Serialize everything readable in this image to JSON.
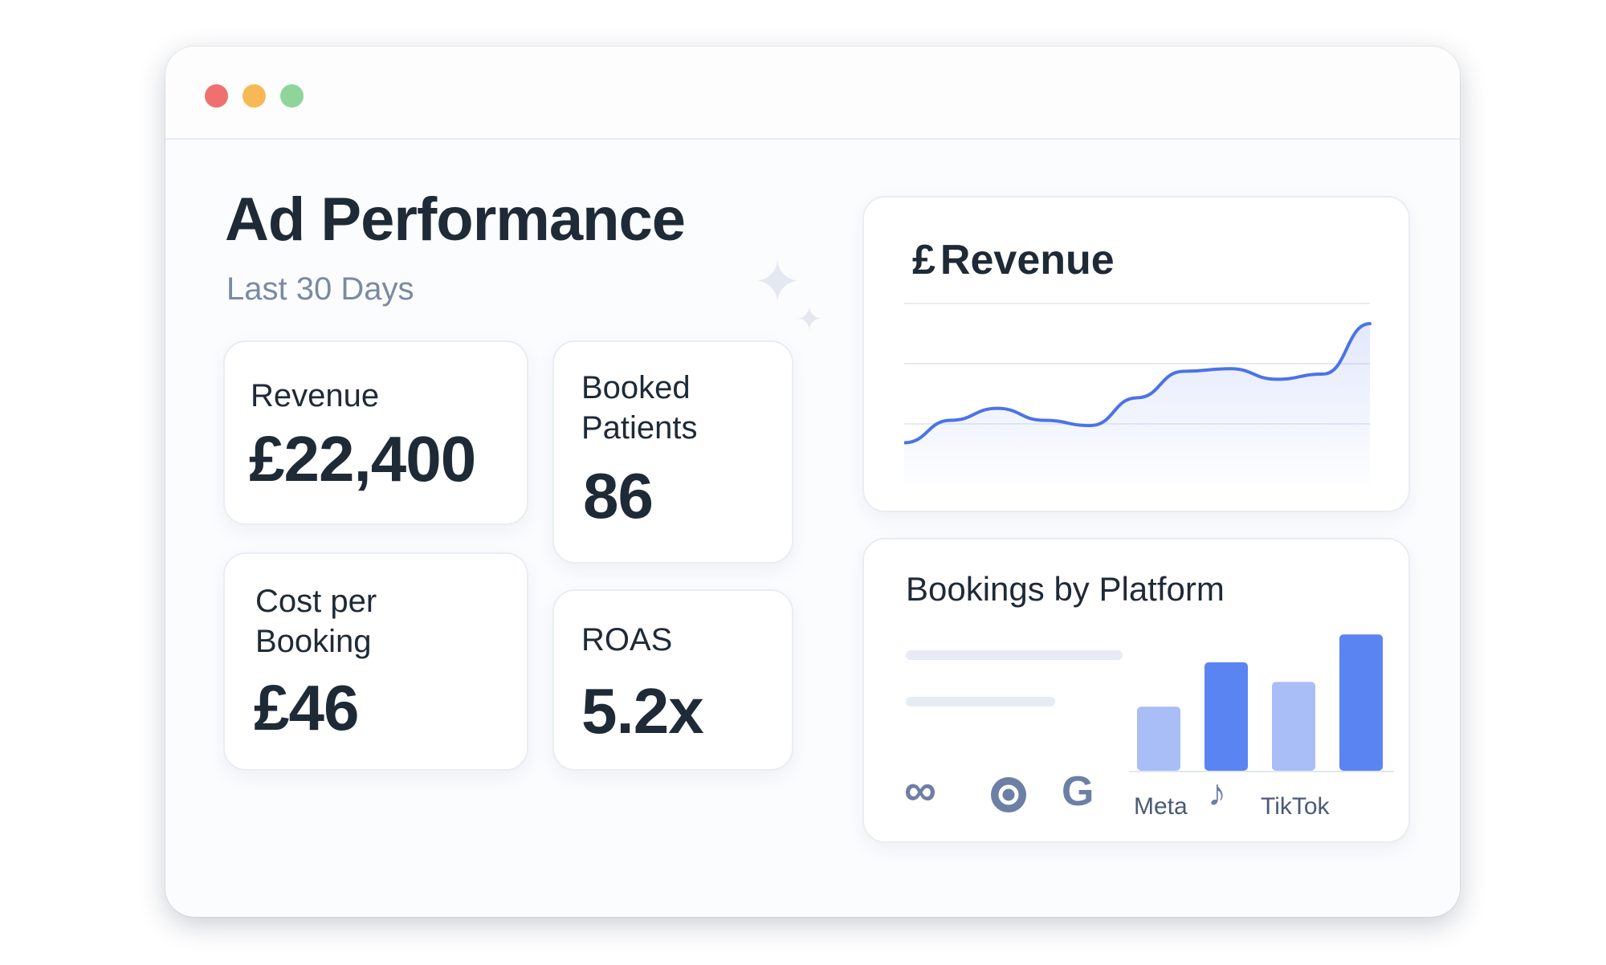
{
  "window": {
    "controls": [
      "close",
      "minimize",
      "maximize"
    ]
  },
  "page": {
    "title": "Ad Performance",
    "subtitle": "Last 30 Days"
  },
  "metrics": {
    "revenue": {
      "label": "Revenue",
      "value": "£22,400"
    },
    "booked_patients": {
      "label": "Booked Patients",
      "value": "86"
    },
    "cost_per_booking": {
      "label": "Cost per Booking",
      "value": "£46"
    },
    "roas": {
      "label": "ROAS",
      "value": "5.2x"
    }
  },
  "revenue_chart": {
    "currency_symbol": "£",
    "title": "Revenue"
  },
  "platform_chart": {
    "title": "Bookings by Platform",
    "labels": {
      "meta": "Meta",
      "tiktok": "TikTok"
    },
    "icons": [
      "meta-icon",
      "instagram-icon",
      "google-icon",
      "tiktok-icon"
    ]
  },
  "chart_data": [
    {
      "type": "area",
      "title": "Revenue",
      "x": [
        0,
        1,
        2,
        3,
        4,
        5,
        6,
        7,
        8,
        9,
        10
      ],
      "values": [
        0.5,
        1.35,
        1.8,
        1.35,
        1.15,
        2.2,
        3.2,
        3.3,
        2.9,
        3.1,
        5.0
      ],
      "ylim": [
        0,
        5.4
      ],
      "grid": true,
      "color": "#4b73e8"
    },
    {
      "type": "bar",
      "title": "Bookings by Platform",
      "values": [
        62,
        105,
        86,
        132
      ],
      "ylim": [
        0,
        140
      ],
      "colors": [
        "#a9bdf6",
        "#5b84f3",
        "#a9bdf6",
        "#5b84f3"
      ]
    }
  ],
  "colors": {
    "accent": "#4b73e8",
    "bar_light": "#a9bdf6",
    "bar_dark": "#5b84f3",
    "text_primary": "#1f2a37",
    "text_muted": "#7b8aa0"
  }
}
